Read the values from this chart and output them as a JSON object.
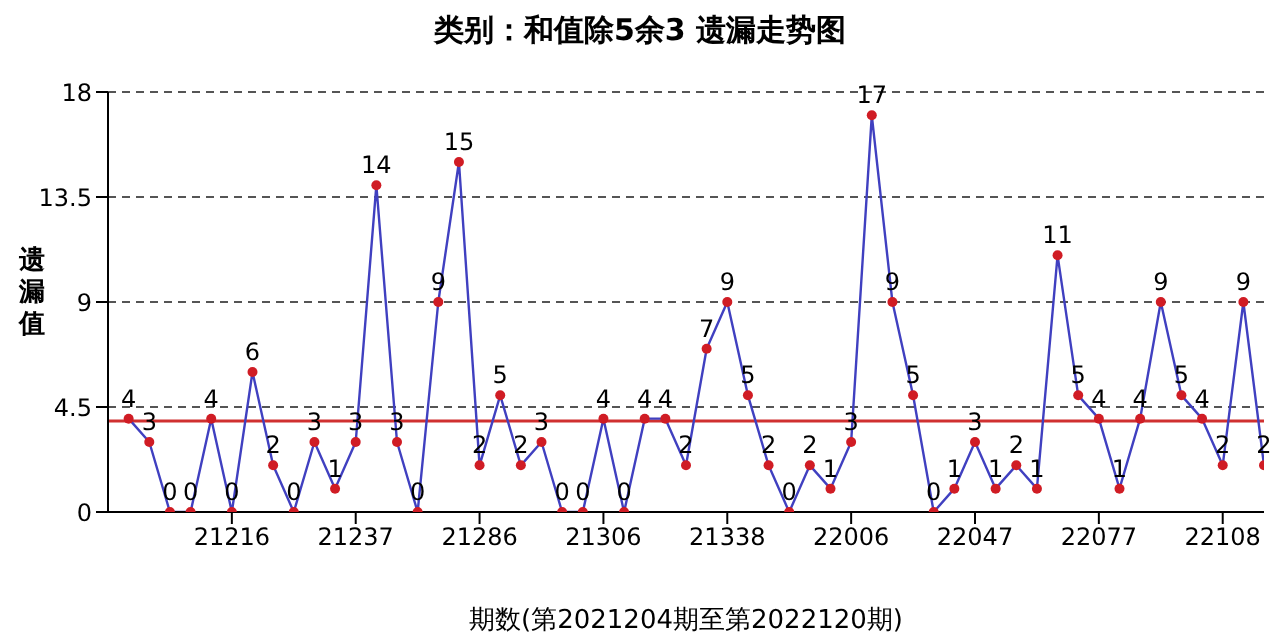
{
  "chart_data": {
    "type": "line",
    "title": "类别：和值除5余3 遗漏走势图",
    "xlabel": "期数(第2021204期至第2022120期)",
    "ylabel": "遗漏值",
    "categories": [
      null,
      null,
      null,
      null,
      null,
      "21216",
      null,
      null,
      null,
      null,
      null,
      "21237",
      null,
      null,
      null,
      null,
      null,
      "21286",
      null,
      null,
      null,
      null,
      null,
      "21306",
      null,
      null,
      null,
      null,
      null,
      "21338",
      null,
      null,
      null,
      null,
      null,
      "22006",
      null,
      null,
      null,
      null,
      null,
      "22047",
      null,
      null,
      null,
      null,
      null,
      "22077",
      null,
      null,
      null,
      null,
      null,
      "22108",
      null,
      null
    ],
    "series": [
      {
        "color": "#4040c0",
        "colors": [
          "#d01c24",
          "#d01c24",
          "#d01c24",
          "#d01c24",
          "#d01c24",
          "#d01c24",
          "#d01c24",
          "#d01c24",
          "#d01c24",
          "#d01c24",
          "#d01c24",
          "#d01c24",
          "#d01c24",
          "#d01c24",
          "#d01c24",
          "#d01c24",
          "#d01c24",
          "#d01c24",
          "#d01c24",
          "#d01c24",
          "#d01c24",
          "#d01c24",
          "#d01c24",
          "#d01c24",
          "#d01c24",
          "#d01c24",
          "#d01c24",
          "#d01c24",
          "#d01c24",
          "#d01c24",
          "#d01c24",
          "#d01c24",
          "#d01c24",
          "#d01c24",
          "#d01c24",
          "#d01c24",
          "#d01c24",
          "#d01c24",
          "#d01c24",
          "#d01c24",
          "#d01c24",
          "#d01c24",
          "#d01c24",
          "#d01c24",
          "#d01c24",
          "#d01c24",
          "#d01c24",
          "#d01c24",
          "#d01c24",
          "#d01c24",
          "#d01c24",
          "#d01c24",
          "#d01c24",
          "#d01c24",
          "#d01c24",
          "#d01c24"
        ],
        "values": [
          4,
          3,
          0,
          0,
          4,
          0,
          6,
          2,
          0,
          3,
          1,
          3,
          14,
          3,
          0,
          9,
          15,
          2,
          5,
          2,
          3,
          0,
          0,
          4,
          0,
          4,
          4,
          2,
          7,
          9,
          5,
          2,
          0,
          2,
          1,
          3,
          17,
          9,
          5,
          0,
          1,
          3,
          1,
          2,
          1,
          11,
          5,
          4,
          1,
          4,
          9,
          5,
          4,
          2,
          9,
          2
        ]
      }
    ],
    "ylim": [
      0,
      18
    ],
    "yticks": [
      0,
      4.5,
      9,
      13.5,
      18
    ],
    "grid": "y",
    "marker": "circle",
    "data_labels": true,
    "legend": false,
    "ref_lines": [
      {
        "axis": "y",
        "value": 3.9,
        "color": "#d03030"
      }
    ]
  }
}
